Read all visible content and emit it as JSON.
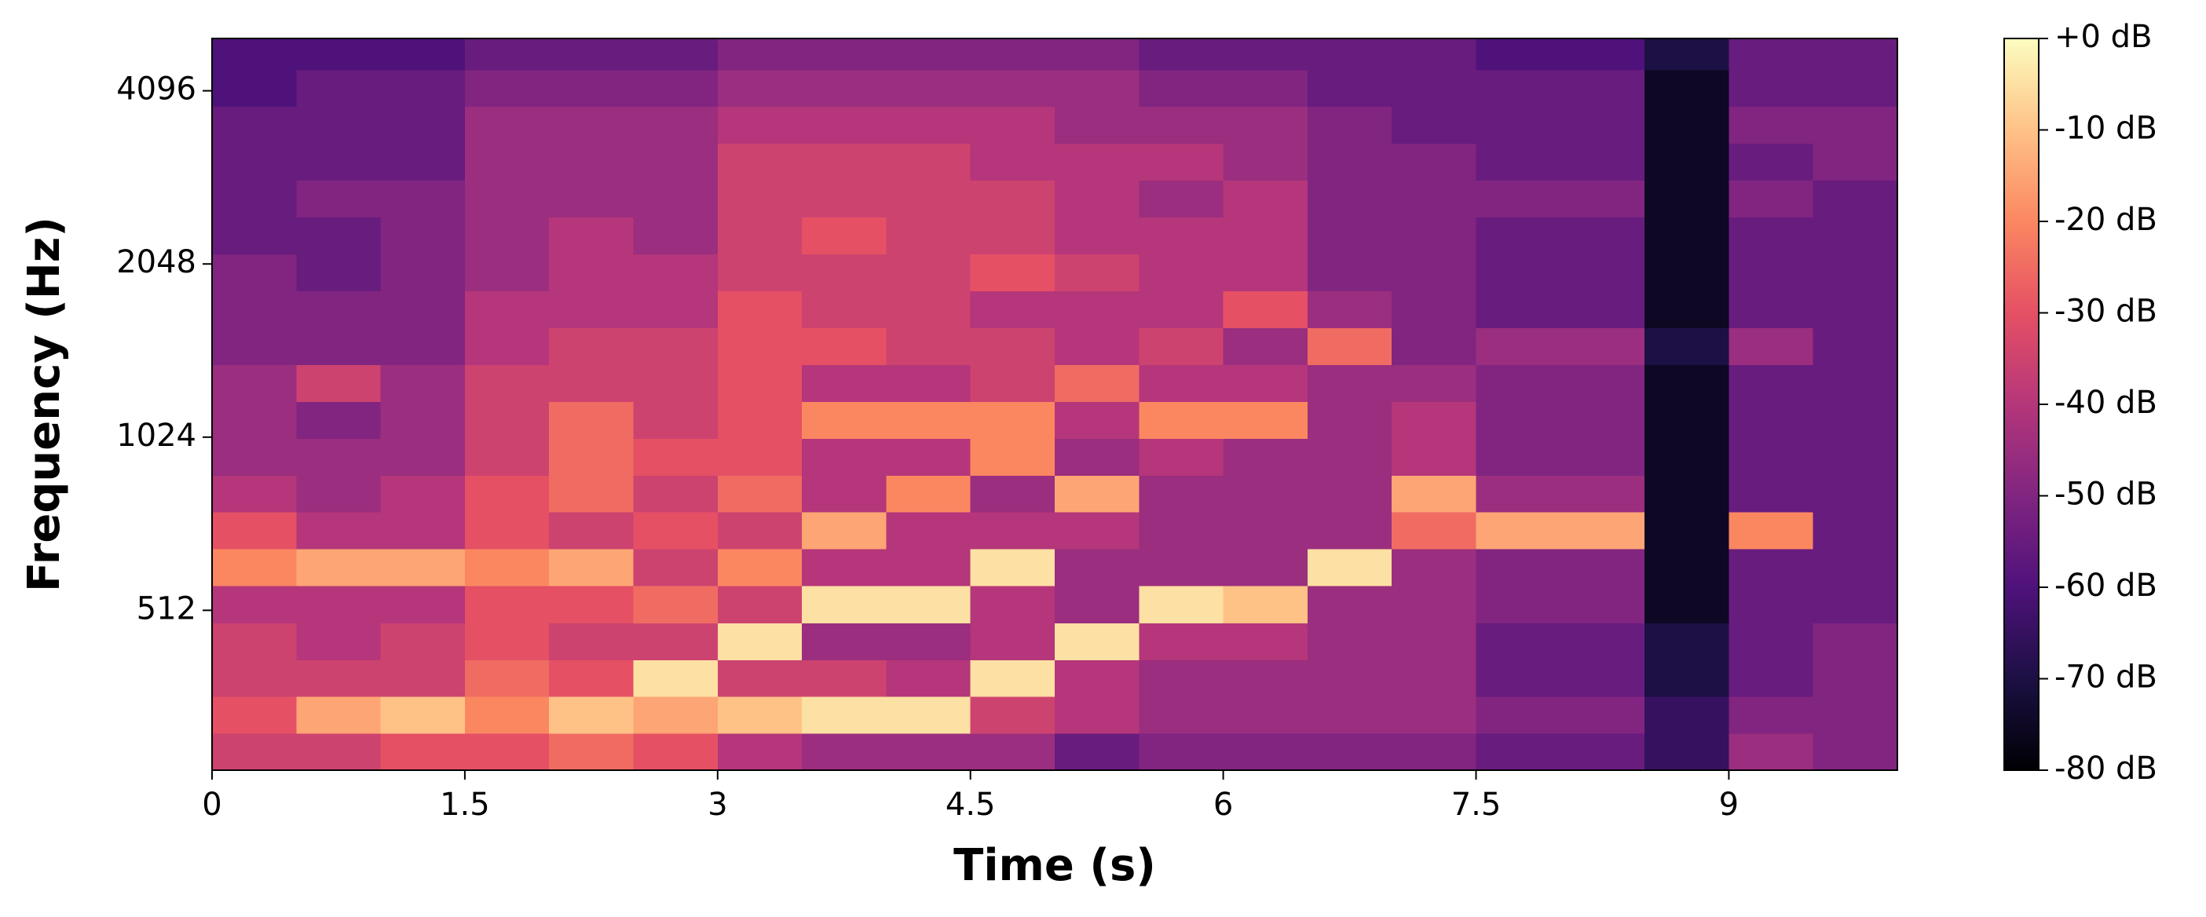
{
  "chart_data": {
    "type": "heatmap",
    "xlabel": "Time (s)",
    "ylabel": "Frequency (Hz)",
    "xlim": [
      0,
      10
    ],
    "xticks": [
      0,
      1.5,
      3,
      4.5,
      6,
      7.5,
      9
    ],
    "ylim": [
      270,
      5050
    ],
    "yscale": "log",
    "yticks": [
      512,
      1024,
      2048,
      4096
    ],
    "xbins": [
      0,
      0.5,
      1,
      1.5,
      2,
      2.5,
      3,
      3.5,
      4,
      4.5,
      5,
      5.5,
      6,
      6.5,
      7,
      7.5,
      8,
      8.5,
      9,
      9.5,
      10
    ],
    "ybins": [
      270,
      313,
      363,
      420,
      487,
      565,
      655,
      759,
      879,
      1019,
      1181,
      1369,
      1587,
      1839,
      2131,
      2470,
      2863,
      3318,
      3846,
      4457,
      5050
    ],
    "zlim": [
      -80,
      0
    ],
    "zticks": [
      {
        "value": 0,
        "label": "+0 dB"
      },
      {
        "value": -10,
        "label": "-10 dB"
      },
      {
        "value": -20,
        "label": "-20 dB"
      },
      {
        "value": -30,
        "label": "-30 dB"
      },
      {
        "value": -40,
        "label": "-40 dB"
      },
      {
        "value": -50,
        "label": "-50 dB"
      },
      {
        "value": -60,
        "label": "-60 dB"
      },
      {
        "value": -70,
        "label": "-70 dB"
      },
      {
        "value": -80,
        "label": "-80 dB"
      }
    ],
    "colorscale": [
      "#000004",
      "#1c1044",
      "#4f127b",
      "#812581",
      "#b5367a",
      "#e55064",
      "#fb8761",
      "#fec287",
      "#fcfdbf"
    ],
    "z": [
      [
        -35,
        -30,
        -35,
        -35,
        -40,
        -20,
        -30,
        -40,
        -45,
        -45,
        -45,
        -50,
        -50,
        -50,
        -55,
        -55,
        -55,
        -55,
        -60,
        -60
      ],
      [
        -35,
        -15,
        -35,
        -40,
        -40,
        -15,
        -40,
        -45,
        -45,
        -50,
        -35,
        -50,
        -50,
        -55,
        -55,
        -50,
        -55,
        -55,
        -55,
        -60
      ],
      [
        -30,
        -10,
        -35,
        -35,
        -40,
        -15,
        -40,
        -40,
        -45,
        -45,
        -45,
        -50,
        -50,
        -50,
        -50,
        -50,
        -55,
        -55,
        -55,
        -60
      ],
      [
        -30,
        -20,
        -25,
        -30,
        -30,
        -20,
        -30,
        -30,
        -35,
        -35,
        -35,
        -40,
        -40,
        -45,
        -45,
        -45,
        -45,
        -45,
        -50,
        -55
      ],
      [
        -25,
        -10,
        -30,
        -35,
        -30,
        -15,
        -35,
        -25,
        -25,
        -25,
        -35,
        -35,
        -40,
        -40,
        -40,
        -45,
        -45,
        -45,
        -50,
        -55
      ],
      [
        -30,
        -15,
        -5,
        -35,
        -25,
        -35,
        -30,
        -35,
        -30,
        -35,
        -35,
        -35,
        -40,
        -40,
        -45,
        -45,
        -45,
        -45,
        -50,
        -55
      ],
      [
        -40,
        -10,
        -35,
        -5,
        -35,
        -20,
        -35,
        -25,
        -30,
        -30,
        -30,
        -30,
        -30,
        -35,
        -35,
        -35,
        -35,
        -40,
        -45,
        -50
      ],
      [
        -45,
        -5,
        -35,
        -45,
        -5,
        -40,
        -15,
        -40,
        -40,
        -20,
        -40,
        -30,
        -35,
        -35,
        -30,
        -35,
        -35,
        -40,
        -45,
        -50
      ],
      [
        -45,
        -5,
        -40,
        -45,
        -5,
        -40,
        -40,
        -20,
        -40,
        -20,
        -40,
        -35,
        -35,
        -35,
        -35,
        -35,
        -35,
        -40,
        -45,
        -50
      ],
      [
        -45,
        -35,
        -5,
        -40,
        -40,
        -5,
        -40,
        -45,
        -20,
        -20,
        -35,
        -35,
        -40,
        -30,
        -35,
        -35,
        -40,
        -40,
        -45,
        -50
      ],
      [
        -55,
        -40,
        -40,
        -5,
        -45,
        -45,
        -40,
        -15,
        -45,
        -40,
        -25,
        -40,
        -40,
        -35,
        -40,
        -40,
        -40,
        -45,
        -45,
        -50
      ],
      [
        -50,
        -45,
        -45,
        -40,
        -5,
        -45,
        -45,
        -45,
        -40,
        -20,
        -40,
        -35,
        -40,
        -40,
        -40,
        -45,
        -40,
        -45,
        -50,
        -55
      ],
      [
        -50,
        -45,
        -45,
        -40,
        -10,
        -45,
        -45,
        -45,
        -45,
        -20,
        -40,
        -45,
        -30,
        -40,
        -40,
        -40,
        -45,
        -45,
        -50,
        -55
      ],
      [
        -50,
        -45,
        -45,
        -45,
        -45,
        -5,
        -45,
        -45,
        -45,
        -45,
        -45,
        -25,
        -45,
        -50,
        -50,
        -50,
        -50,
        -50,
        -55,
        -55
      ],
      [
        -50,
        -45,
        -45,
        -45,
        -45,
        -45,
        -25,
        -15,
        -40,
        -40,
        -45,
        -50,
        -50,
        -50,
        -50,
        -50,
        -50,
        -55,
        -55,
        -55
      ],
      [
        -55,
        -50,
        -55,
        -55,
        -50,
        -50,
        -15,
        -45,
        -50,
        -50,
        -50,
        -45,
        -55,
        -55,
        -55,
        -50,
        -55,
        -55,
        -55,
        -60
      ],
      [
        -55,
        -50,
        -55,
        -55,
        -50,
        -50,
        -15,
        -45,
        -50,
        -50,
        -50,
        -45,
        -55,
        -55,
        -55,
        -50,
        -55,
        -55,
        -55,
        -60
      ],
      [
        -65,
        -65,
        -70,
        -70,
        -75,
        -75,
        -75,
        -75,
        -75,
        -75,
        -75,
        -70,
        -75,
        -75,
        -75,
        -75,
        -75,
        -75,
        -75,
        -70
      ],
      [
        -45,
        -50,
        -55,
        -55,
        -55,
        -55,
        -20,
        -55,
        -55,
        -55,
        -55,
        -45,
        -55,
        -55,
        -55,
        -50,
        -55,
        -50,
        -55,
        -55
      ],
      [
        -50,
        -50,
        -50,
        -50,
        -55,
        -55,
        -55,
        -55,
        -55,
        -55,
        -55,
        -55,
        -55,
        -55,
        -55,
        -55,
        -50,
        -50,
        -55,
        -55
      ]
    ]
  }
}
